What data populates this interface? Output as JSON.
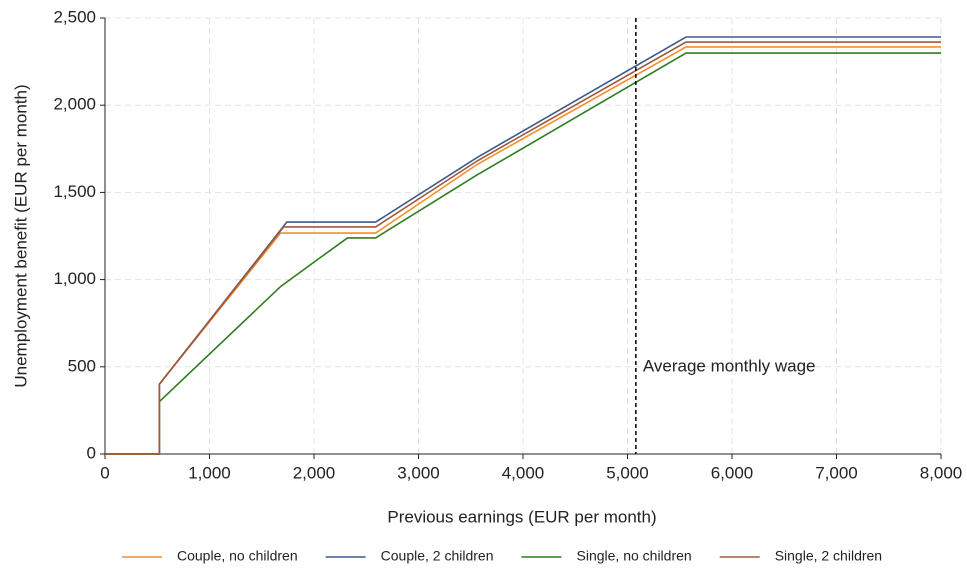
{
  "chart_data": {
    "type": "line",
    "x_label": "Previous earnings (EUR per month)",
    "y_label": "Unemployment benefit (EUR per month)",
    "xlim": [
      0,
      8000
    ],
    "ylim": [
      0,
      2500
    ],
    "xticks": [
      0,
      {
        "value": 1000,
        "label": "1,000"
      },
      {
        "value": 2000,
        "label": "2,000"
      },
      {
        "value": 3000,
        "label": "3,000"
      },
      {
        "value": 4000,
        "label": "4,000"
      },
      {
        "value": 5000,
        "label": "5,000"
      },
      {
        "value": 6000,
        "label": "6,000"
      },
      {
        "value": 7000,
        "label": "7,000"
      },
      {
        "value": 8000,
        "label": "8,000"
      }
    ],
    "yticks": [
      0,
      500,
      {
        "value": 1000,
        "label": "1,000"
      },
      {
        "value": 1500,
        "label": "1,500"
      },
      {
        "value": 2000,
        "label": "2,000"
      },
      {
        "value": 2500,
        "label": "2,500"
      }
    ],
    "grid": true,
    "vline": {
      "x": 5080,
      "label": "Average monthly wage"
    },
    "series": [
      {
        "name": "Couple, no children",
        "color": "#f28e2b",
        "x": [
          0,
          520,
          520,
          1680,
          2590,
          3560,
          5560,
          8000
        ],
        "values": [
          0,
          0,
          400,
          1267,
          1267,
          1660,
          2334,
          2334
        ]
      },
      {
        "name": "Couple, 2 children",
        "color": "#3b5b8a",
        "x": [
          0,
          520,
          520,
          1740,
          2590,
          3560,
          5560,
          8000
        ],
        "values": [
          0,
          0,
          400,
          1330,
          1330,
          1700,
          2391,
          2391
        ]
      },
      {
        "name": "Single, no children",
        "color": "#2e7d1f",
        "x": [
          0,
          520,
          520,
          1680,
          2000,
          2320,
          2590,
          3560,
          5560,
          8000
        ],
        "values": [
          0,
          0,
          300,
          960,
          1100,
          1239,
          1239,
          1600,
          2299,
          2299
        ]
      },
      {
        "name": "Single, 2 children",
        "color": "#a0583a",
        "x": [
          0,
          520,
          520,
          1710,
          2590,
          3560,
          5560,
          8000
        ],
        "values": [
          0,
          0,
          400,
          1302,
          1302,
          1680,
          2362,
          2362
        ]
      }
    ]
  }
}
